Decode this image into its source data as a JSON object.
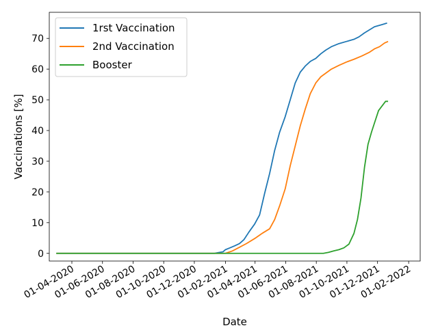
{
  "chart_data": {
    "type": "line",
    "xlabel": "Date",
    "ylabel": "Vaccinations [%]",
    "x_range": [
      "2020-02-16",
      "2022-02-24"
    ],
    "ylim": [
      -2.5,
      78.5
    ],
    "x_ticks": [
      "2020-04-01",
      "2020-06-01",
      "2020-08-01",
      "2020-10-01",
      "2020-12-01",
      "2021-02-01",
      "2021-04-01",
      "2021-06-01",
      "2021-08-01",
      "2021-10-01",
      "2021-12-01",
      "2022-02-01"
    ],
    "x_tick_labels": [
      "01-04-2020",
      "01-06-2020",
      "01-08-2020",
      "01-10-2020",
      "01-12-2020",
      "01-02-2021",
      "01-04-2021",
      "01-06-2021",
      "01-08-2021",
      "01-10-2021",
      "01-12-2021",
      "01-02-2022"
    ],
    "y_ticks": [
      0,
      10,
      20,
      30,
      40,
      50,
      60,
      70
    ],
    "y_tick_labels": [
      "0",
      "10",
      "20",
      "30",
      "40",
      "50",
      "60",
      "70"
    ],
    "grid": false,
    "legend_position": "top-left",
    "series": [
      {
        "name": "1rst Vaccination",
        "color": "#1f77b4",
        "points": [
          [
            "2020-03-01",
            0
          ],
          [
            "2021-01-10",
            0
          ],
          [
            "2021-01-20",
            0.3
          ],
          [
            "2021-01-27",
            0.5
          ],
          [
            "2021-02-01",
            1.2
          ],
          [
            "2021-02-10",
            1.8
          ],
          [
            "2021-02-20",
            2.5
          ],
          [
            "2021-03-01",
            3.2
          ],
          [
            "2021-03-10",
            4.5
          ],
          [
            "2021-03-20",
            7.0
          ],
          [
            "2021-03-31",
            9.5
          ],
          [
            "2021-04-10",
            12.5
          ],
          [
            "2021-04-20",
            19.5
          ],
          [
            "2021-04-30",
            26.0
          ],
          [
            "2021-05-10",
            33.5
          ],
          [
            "2021-05-20",
            39.5
          ],
          [
            "2021-05-31",
            44.5
          ],
          [
            "2021-06-10",
            50.0
          ],
          [
            "2021-06-20",
            55.5
          ],
          [
            "2021-06-30",
            59.0
          ],
          [
            "2021-07-10",
            61.0
          ],
          [
            "2021-07-20",
            62.5
          ],
          [
            "2021-07-31",
            63.5
          ],
          [
            "2021-08-10",
            65.0
          ],
          [
            "2021-08-20",
            66.2
          ],
          [
            "2021-08-31",
            67.3
          ],
          [
            "2021-09-15",
            68.3
          ],
          [
            "2021-09-30",
            69.0
          ],
          [
            "2021-10-15",
            69.7
          ],
          [
            "2021-10-25",
            70.5
          ],
          [
            "2021-11-05",
            71.8
          ],
          [
            "2021-11-15",
            72.8
          ],
          [
            "2021-11-25",
            73.8
          ],
          [
            "2021-12-10",
            74.5
          ],
          [
            "2021-12-20",
            75.0
          ]
        ]
      },
      {
        "name": "2nd Vaccination",
        "color": "#ff7f0e",
        "points": [
          [
            "2020-03-01",
            0
          ],
          [
            "2021-02-01",
            0
          ],
          [
            "2021-02-15",
            0.8
          ],
          [
            "2021-03-01",
            2.0
          ],
          [
            "2021-03-15",
            3.2
          ],
          [
            "2021-03-31",
            4.8
          ],
          [
            "2021-04-15",
            6.5
          ],
          [
            "2021-04-30",
            8.0
          ],
          [
            "2021-05-10",
            11.0
          ],
          [
            "2021-05-20",
            15.5
          ],
          [
            "2021-05-31",
            21.0
          ],
          [
            "2021-06-10",
            28.5
          ],
          [
            "2021-06-20",
            35.0
          ],
          [
            "2021-06-30",
            41.5
          ],
          [
            "2021-07-10",
            47.0
          ],
          [
            "2021-07-20",
            52.0
          ],
          [
            "2021-07-31",
            55.5
          ],
          [
            "2021-08-10",
            57.5
          ],
          [
            "2021-08-20",
            58.7
          ],
          [
            "2021-08-31",
            60.0
          ],
          [
            "2021-09-15",
            61.2
          ],
          [
            "2021-09-30",
            62.3
          ],
          [
            "2021-10-15",
            63.2
          ],
          [
            "2021-10-31",
            64.3
          ],
          [
            "2021-11-15",
            65.5
          ],
          [
            "2021-11-25",
            66.6
          ],
          [
            "2021-12-05",
            67.3
          ],
          [
            "2021-12-15",
            68.5
          ],
          [
            "2021-12-22",
            69.0
          ]
        ]
      },
      {
        "name": "Booster",
        "color": "#2ca02c",
        "points": [
          [
            "2020-03-01",
            0
          ],
          [
            "2021-08-15",
            0
          ],
          [
            "2021-08-25",
            0.3
          ],
          [
            "2021-09-05",
            0.8
          ],
          [
            "2021-09-15",
            1.2
          ],
          [
            "2021-09-25",
            1.8
          ],
          [
            "2021-10-05",
            3.0
          ],
          [
            "2021-10-15",
            6.5
          ],
          [
            "2021-10-22",
            11.0
          ],
          [
            "2021-10-29",
            18.0
          ],
          [
            "2021-11-05",
            28.0
          ],
          [
            "2021-11-12",
            35.5
          ],
          [
            "2021-11-19",
            39.5
          ],
          [
            "2021-11-26",
            43.0
          ],
          [
            "2021-12-03",
            46.5
          ],
          [
            "2021-12-10",
            48.0
          ],
          [
            "2021-12-17",
            49.5
          ],
          [
            "2021-12-22",
            49.5
          ]
        ]
      }
    ]
  }
}
